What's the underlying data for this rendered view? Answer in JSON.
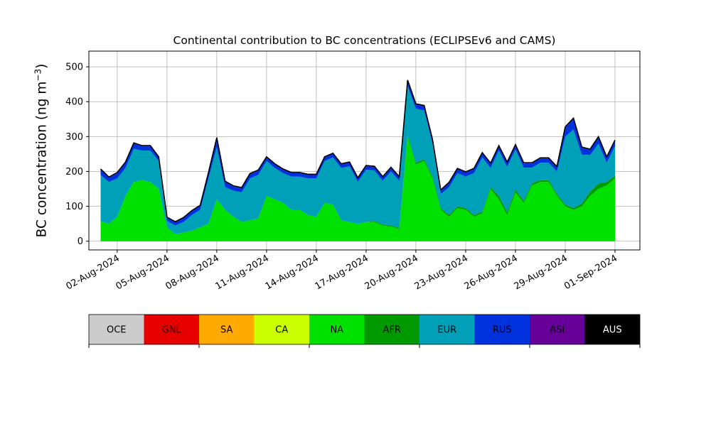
{
  "chart_data": {
    "type": "area",
    "stacked": true,
    "title": "Continental contribution to BC concentrations (ECLIPSEv6 and CAMS)",
    "ylabel_base": "BC concentration (ng m",
    "ylabel_sup": "−3",
    "ylabel_close": ")",
    "xlabel": "",
    "ylim": [
      -25,
      545
    ],
    "yticks": [
      0,
      100,
      200,
      300,
      400,
      500
    ],
    "xlim": [
      "2024-07-31T07:00",
      "2024-09-02T12:00"
    ],
    "xticks": [
      "02-Aug-2024",
      "05-Aug-2024",
      "08-Aug-2024",
      "11-Aug-2024",
      "14-Aug-2024",
      "17-Aug-2024",
      "20-Aug-2024",
      "23-Aug-2024",
      "26-Aug-2024",
      "29-Aug-2024",
      "01-Sep-2024"
    ],
    "grid": true,
    "x_dates": [
      "2024-08-01T00:00",
      "2024-08-01T12:00",
      "2024-08-02T00:00",
      "2024-08-02T12:00",
      "2024-08-03T00:00",
      "2024-08-03T12:00",
      "2024-08-04T00:00",
      "2024-08-04T12:00",
      "2024-08-05T00:00",
      "2024-08-05T12:00",
      "2024-08-06T00:00",
      "2024-08-06T12:00",
      "2024-08-07T00:00",
      "2024-08-07T12:00",
      "2024-08-08T00:00",
      "2024-08-08T12:00",
      "2024-08-09T00:00",
      "2024-08-09T12:00",
      "2024-08-10T00:00",
      "2024-08-10T12:00",
      "2024-08-11T00:00",
      "2024-08-11T12:00",
      "2024-08-12T00:00",
      "2024-08-12T12:00",
      "2024-08-13T00:00",
      "2024-08-13T12:00",
      "2024-08-14T00:00",
      "2024-08-14T12:00",
      "2024-08-15T00:00",
      "2024-08-15T12:00",
      "2024-08-16T00:00",
      "2024-08-16T12:00",
      "2024-08-17T00:00",
      "2024-08-17T12:00",
      "2024-08-18T00:00",
      "2024-08-18T12:00",
      "2024-08-19T00:00",
      "2024-08-19T12:00",
      "2024-08-20T00:00",
      "2024-08-20T12:00",
      "2024-08-21T00:00",
      "2024-08-21T12:00",
      "2024-08-22T00:00",
      "2024-08-22T12:00",
      "2024-08-23T00:00",
      "2024-08-23T12:00",
      "2024-08-24T00:00",
      "2024-08-24T12:00",
      "2024-08-25T00:00",
      "2024-08-25T12:00",
      "2024-08-26T00:00",
      "2024-08-26T12:00",
      "2024-08-27T00:00",
      "2024-08-27T12:00",
      "2024-08-28T00:00",
      "2024-08-28T12:00",
      "2024-08-29T00:00",
      "2024-08-29T12:00",
      "2024-08-30T00:00",
      "2024-08-30T12:00",
      "2024-08-31T00:00",
      "2024-08-31T12:00",
      "2024-09-01T00:00"
    ],
    "series": [
      {
        "name": "OCE",
        "color": "#cccccc",
        "values": [
          0,
          0,
          0,
          0,
          0,
          0,
          0,
          0,
          0,
          0,
          0,
          0,
          0,
          0,
          0,
          0,
          0,
          0,
          0,
          0,
          0,
          0,
          0,
          0,
          0,
          0,
          0,
          0,
          0,
          0,
          0,
          0,
          0,
          0,
          0,
          0,
          0,
          0,
          0,
          0,
          0,
          0,
          0,
          0,
          0,
          0,
          0,
          0,
          0,
          0,
          0,
          0,
          0,
          0,
          0,
          0,
          0,
          0,
          0,
          0,
          0,
          0,
          0
        ]
      },
      {
        "name": "GNL",
        "color": "#e60000",
        "values": [
          0,
          0,
          0,
          0,
          0,
          0,
          0,
          0,
          0,
          0,
          0,
          0,
          0,
          0,
          0,
          0,
          0,
          0,
          0,
          0,
          0,
          0,
          0,
          0,
          0,
          0,
          0,
          0,
          0,
          0,
          0,
          0,
          0,
          0,
          0,
          0,
          0,
          0,
          0,
          0,
          0,
          0,
          0,
          0,
          0,
          0,
          0,
          0,
          0,
          0,
          0,
          0,
          0,
          0,
          0,
          0,
          0,
          0,
          0,
          0,
          0,
          0,
          0
        ]
      },
      {
        "name": "SA",
        "color": "#ffaa00",
        "values": [
          0,
          0,
          0,
          0,
          0,
          0,
          0,
          0,
          0,
          0,
          0,
          0,
          0,
          0,
          0,
          0,
          0,
          0,
          0,
          0,
          0,
          0,
          0,
          0,
          0,
          0,
          0,
          0,
          0,
          0,
          0,
          0,
          0,
          0,
          0,
          0,
          0,
          0,
          0,
          0,
          0,
          0,
          0,
          0,
          0,
          0,
          0,
          0,
          0,
          0,
          0,
          0,
          0,
          0,
          0,
          0,
          0,
          0,
          0,
          0,
          0,
          0,
          0
        ]
      },
      {
        "name": "CA",
        "color": "#ccff00",
        "values": [
          0,
          0,
          0,
          0,
          0,
          0,
          0,
          0,
          0,
          0,
          0,
          0,
          0,
          0,
          0,
          0,
          0,
          0,
          0,
          0,
          0,
          0,
          0,
          0,
          0,
          0,
          0,
          0,
          0,
          0,
          0,
          0,
          0,
          0,
          0,
          0,
          0,
          0,
          0,
          0,
          0,
          0,
          0,
          0,
          0,
          0,
          0,
          0,
          0,
          0,
          0,
          0,
          0,
          0,
          0,
          0,
          0,
          0,
          0,
          0,
          0,
          0,
          0
        ]
      },
      {
        "name": "NA",
        "color": "#00e100",
        "values": [
          57,
          50,
          70,
          130,
          170,
          175,
          170,
          150,
          40,
          20,
          25,
          30,
          40,
          50,
          120,
          90,
          70,
          55,
          60,
          65,
          130,
          120,
          110,
          90,
          90,
          75,
          70,
          110,
          105,
          60,
          55,
          50,
          55,
          55,
          45,
          42,
          35,
          300,
          220,
          230,
          180,
          90,
          70,
          95,
          90,
          70,
          80,
          150,
          120,
          75,
          140,
          110,
          160,
          170,
          170,
          130,
          100,
          90,
          100,
          130,
          150,
          160,
          180
        ]
      },
      {
        "name": "AFR",
        "color": "#009900",
        "values": [
          0,
          0,
          0,
          0,
          0,
          0,
          0,
          0,
          0,
          0,
          0,
          0,
          0,
          0,
          0,
          0,
          0,
          0,
          0,
          0,
          0,
          0,
          0,
          0,
          0,
          0,
          0,
          0,
          0,
          0,
          0,
          0,
          0,
          3,
          3,
          3,
          3,
          5,
          5,
          5,
          5,
          5,
          5,
          5,
          5,
          5,
          5,
          5,
          10,
          8,
          8,
          6,
          6,
          5,
          5,
          5,
          5,
          5,
          8,
          12,
          15,
          10,
          8
        ]
      },
      {
        "name": "EUR",
        "color": "#00a0b8",
        "values": [
          133,
          120,
          110,
          80,
          95,
          85,
          90,
          80,
          18,
          25,
          30,
          45,
          50,
          130,
          150,
          65,
          75,
          85,
          120,
          125,
          100,
          90,
          85,
          95,
          95,
          105,
          110,
          120,
          135,
          150,
          160,
          120,
          150,
          145,
          125,
          155,
          135,
          140,
          155,
          140,
          95,
          40,
          80,
          95,
          90,
          120,
          155,
          55,
          130,
          130,
          115,
          95,
          45,
          50,
          50,
          65,
          195,
          225,
          140,
          105,
          115,
          55,
          85
        ]
      },
      {
        "name": "RUS",
        "color": "#0033dd",
        "values": [
          15,
          12,
          15,
          15,
          15,
          12,
          12,
          10,
          10,
          10,
          12,
          12,
          12,
          15,
          25,
          15,
          12,
          12,
          12,
          12,
          10,
          10,
          10,
          10,
          10,
          10,
          10,
          10,
          10,
          10,
          10,
          10,
          10,
          10,
          10,
          10,
          10,
          15,
          12,
          12,
          10,
          10,
          12,
          12,
          12,
          12,
          12,
          12,
          12,
          12,
          12,
          12,
          12,
          12,
          12,
          12,
          25,
          30,
          20,
          15,
          18,
          15,
          15
        ]
      },
      {
        "name": "ASI",
        "color": "#660099",
        "values": [
          2,
          2,
          2,
          2,
          2,
          2,
          2,
          2,
          1,
          1,
          1,
          1,
          1,
          2,
          2,
          2,
          2,
          2,
          2,
          2,
          2,
          2,
          2,
          2,
          2,
          2,
          2,
          2,
          2,
          2,
          2,
          2,
          2,
          2,
          2,
          2,
          2,
          2,
          2,
          2,
          2,
          2,
          2,
          2,
          2,
          2,
          2,
          2,
          2,
          2,
          2,
          2,
          2,
          2,
          2,
          2,
          3,
          3,
          2,
          2,
          2,
          2,
          2
        ]
      },
      {
        "name": "AUS",
        "color": "#000000",
        "values": [
          0,
          0,
          0,
          0,
          0,
          0,
          0,
          0,
          0,
          0,
          0,
          0,
          0,
          0,
          0,
          0,
          0,
          0,
          0,
          0,
          0,
          0,
          0,
          0,
          0,
          0,
          0,
          0,
          0,
          0,
          0,
          0,
          0,
          0,
          0,
          0,
          0,
          0,
          0,
          0,
          0,
          0,
          0,
          0,
          0,
          0,
          0,
          0,
          0,
          0,
          0,
          0,
          0,
          0,
          0,
          0,
          0,
          0,
          0,
          0,
          0,
          0,
          0
        ]
      }
    ],
    "legend_placement": "below"
  }
}
